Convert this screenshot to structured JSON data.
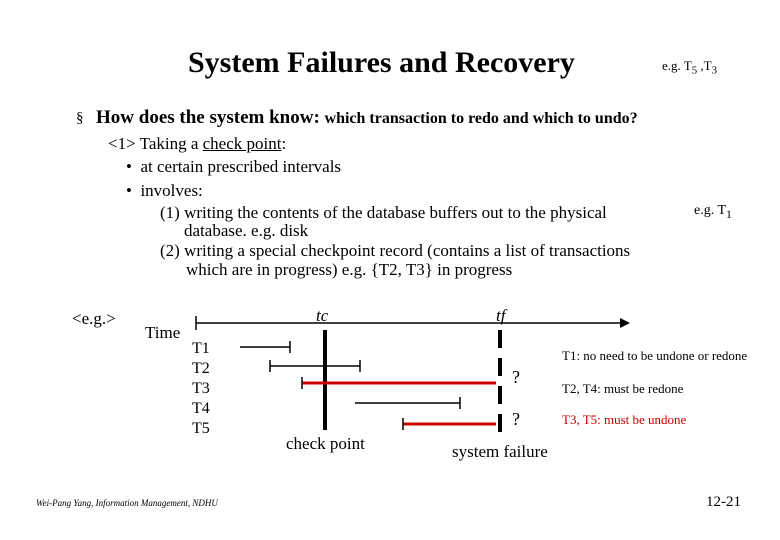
{
  "header": {
    "title": "System Failures and Recovery",
    "example_top": "e.g. T",
    "example_top_sub1": "5",
    "example_top_sep": " ,T",
    "example_top_sub2": "3"
  },
  "question": {
    "bullet": "§",
    "lead": "How does the system know: ",
    "sub": "which transaction to redo and which to undo?"
  },
  "checkpoint": {
    "prefix": "<1> Taking a ",
    "term": "check point",
    "suffix": ":",
    "bullets": [
      "at certain prescribed intervals",
      "involves:"
    ],
    "lines": [
      "(1) writing the contents of the database buffers out to the physical",
      "database. e.g. disk",
      "(2) writing a special checkpoint record (contains a list of transactions",
      "which are in progress)  e.g. {T2, T3} in progress"
    ],
    "example_right": "e.g. T",
    "example_right_sub": "1"
  },
  "diagram": {
    "example_label": "<e.g.>",
    "time_label": "Time",
    "tc_label": "tc",
    "tf_label": "tf",
    "transactions": [
      "T1",
      "T2",
      "T3",
      "T4",
      "T5"
    ],
    "question_marks": [
      "?",
      "?"
    ],
    "notes": [
      "T1: no need to be undone or redone",
      "T2, T4: must be redone",
      "T3, T5: must be undone"
    ],
    "checkpoint_label": "check point",
    "failure_label": "system failure",
    "colors": {
      "line": "#000000",
      "undo": "#cc0000"
    }
  },
  "footer": {
    "author": "Wei-Pang Yang, Information Management, NDHU",
    "page": "12-21"
  }
}
